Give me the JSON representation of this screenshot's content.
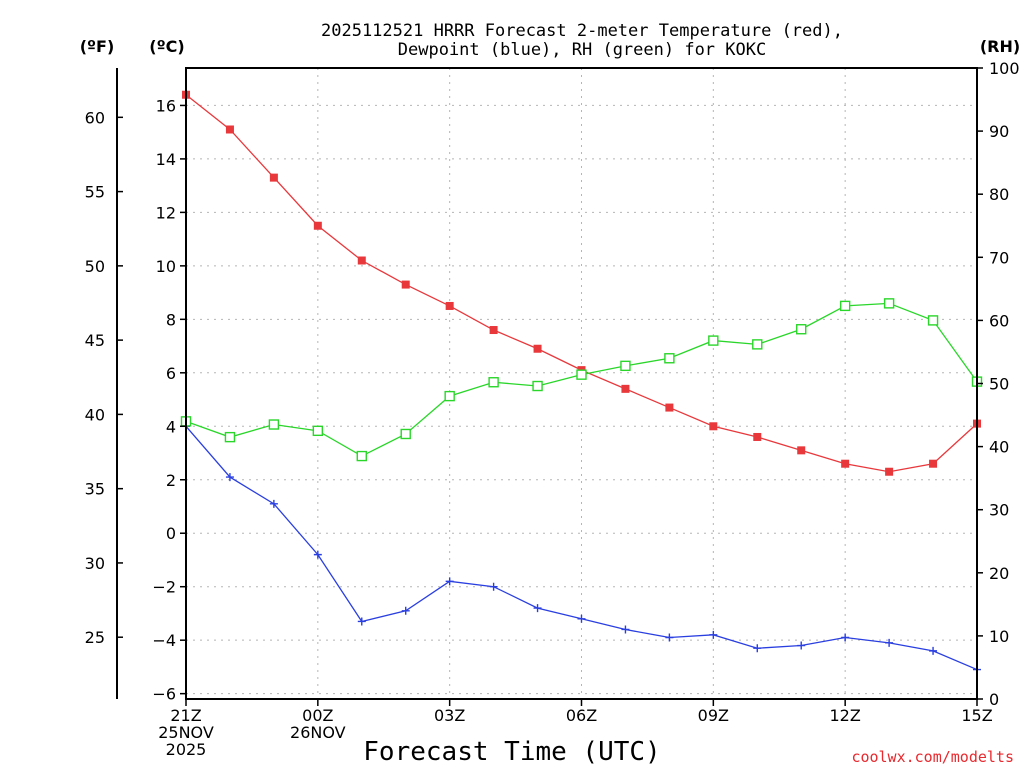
{
  "chart_data": {
    "type": "line",
    "title_line1": "2025112521 HRRR Forecast 2-meter Temperature (red),",
    "title_line2": "Dewpoint (blue), RH (green) for KOKC",
    "unit_f": "(ºF)",
    "unit_c": "(ºC)",
    "unit_rh": "(RH)",
    "xlabel": "Forecast Time (UTC)",
    "credit": "coolwx.com/modelts",
    "credit_color": "#e8292e",
    "x_hours": [
      0,
      1,
      2,
      3,
      4,
      5,
      6,
      7,
      8,
      9,
      10,
      11,
      12,
      13,
      14,
      15,
      16,
      17,
      18
    ],
    "xlim": [
      0,
      18
    ],
    "x_ticks": [
      {
        "hour": 0,
        "lines": [
          "21Z",
          "25NOV",
          "2025"
        ]
      },
      {
        "hour": 3,
        "lines": [
          "00Z",
          "26NOV"
        ]
      },
      {
        "hour": 6,
        "lines": [
          "03Z"
        ]
      },
      {
        "hour": 9,
        "lines": [
          "06Z"
        ]
      },
      {
        "hour": 12,
        "lines": [
          "09Z"
        ]
      },
      {
        "hour": 15,
        "lines": [
          "12Z"
        ]
      },
      {
        "hour": 18,
        "lines": [
          "15Z"
        ]
      }
    ],
    "ylim_c": [
      -6.2,
      17.4
    ],
    "yticks_c": [
      "-6",
      "-4",
      "-2",
      "0",
      "2",
      "4",
      "6",
      "8",
      "10",
      "12",
      "14",
      "16"
    ],
    "yticks_f": [
      "25",
      "30",
      "35",
      "40",
      "45",
      "50",
      "55",
      "60"
    ],
    "ylim_rh": [
      0,
      100
    ],
    "yticks_rh": [
      "0",
      "10",
      "20",
      "30",
      "40",
      "50",
      "60",
      "70",
      "80",
      "90",
      "100"
    ],
    "series": [
      {
        "name": "Temperature",
        "axis": "c",
        "color": "#e8383c",
        "marker": "filled-square",
        "values": [
          16.4,
          15.1,
          13.3,
          11.5,
          10.2,
          9.3,
          8.5,
          7.6,
          6.9,
          6.1,
          5.4,
          4.7,
          4.0,
          3.6,
          3.1,
          2.6,
          2.3,
          2.6,
          4.1
        ]
      },
      {
        "name": "Dewpoint",
        "axis": "c",
        "color": "#2a3fe0",
        "marker": "plus",
        "values": [
          4.0,
          2.1,
          1.1,
          -0.8,
          -3.3,
          -2.9,
          -1.8,
          -2.0,
          -2.8,
          -3.2,
          -3.6,
          -3.9,
          -3.8,
          -4.3,
          -4.2,
          -3.9,
          -4.1,
          -4.4,
          -5.1
        ]
      },
      {
        "name": "RH",
        "axis": "rh",
        "color": "#2ad62a",
        "marker": "open-square",
        "values": [
          44,
          41.5,
          43.5,
          42.5,
          38.5,
          42,
          48,
          50.2,
          49.6,
          51.4,
          52.8,
          54,
          56.8,
          56.2,
          58.6,
          62.3,
          62.7,
          60,
          50.3
        ]
      }
    ]
  }
}
